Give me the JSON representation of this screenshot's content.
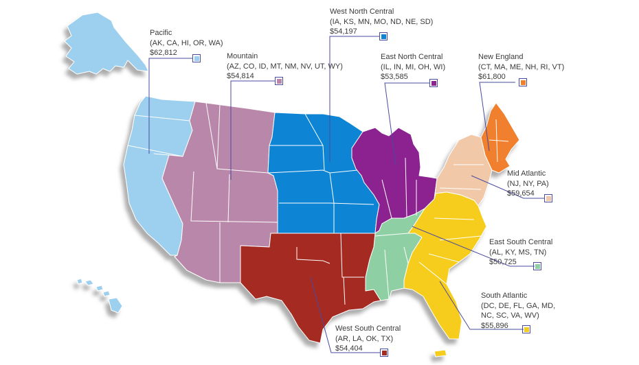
{
  "regions": {
    "pacific": {
      "name": "Pacific",
      "states": "(AK, CA, HI, OR, WA)",
      "value": "$62,812",
      "color": "#9dcfee"
    },
    "mountain": {
      "name": "Mountain",
      "states": "(AZ, CO, ID, MT, NM, NV, UT, WY)",
      "value": "$54,814",
      "color": "#b987a9"
    },
    "west_north_central": {
      "name": "West North Central",
      "states": "(IA, KS, MN, MO, ND, NE, SD)",
      "value": "$54,197",
      "color": "#0b84d4"
    },
    "east_north_central": {
      "name": "East North Central",
      "states": "(IL, IN, MI, OH, WI)",
      "value": "$53,585",
      "color": "#8b2390"
    },
    "new_england": {
      "name": "New England",
      "states": "(CT, MA, ME, NH, RI, VT)",
      "value": "$61,800",
      "color": "#f07f2e"
    },
    "mid_atlantic": {
      "name": "Mid Atlantic",
      "states": "(NJ, NY, PA)",
      "value": "$59,654",
      "color": "#f1c9a9"
    },
    "east_south_central": {
      "name": "East South Central",
      "states": "(AL, KY, MS, TN)",
      "value": "$50,725",
      "color": "#8fcfa4"
    },
    "south_atlantic": {
      "name": "South Atlantic",
      "states_line1": "(DC, DE, FL, GA, MD,",
      "states_line2": "NC, SC, VA, WV)",
      "value": "$55,896",
      "color": "#f6cd1d"
    },
    "west_south_central": {
      "name": "West South Central",
      "states": "(AR, LA, OK, TX)",
      "value": "$54,404",
      "color": "#a52a23"
    }
  }
}
